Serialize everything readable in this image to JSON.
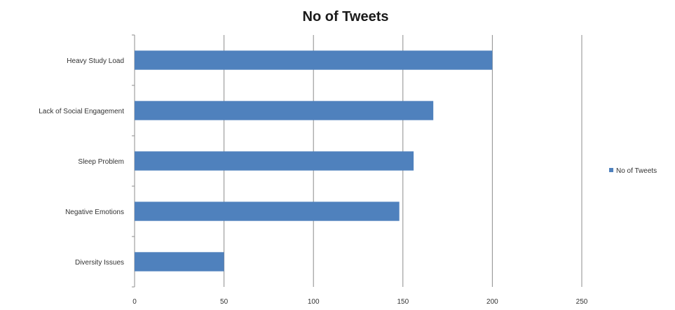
{
  "chart_data": {
    "type": "bar",
    "orientation": "horizontal",
    "title": "No of Tweets",
    "xlabel": "",
    "ylabel": "",
    "categories": [
      "Heavy Study Load",
      "Lack of Social Engagement",
      "Sleep Problem",
      "Negative Emotions",
      "Diversity Issues"
    ],
    "series": [
      {
        "name": "No of Tweets",
        "values": [
          200,
          167,
          156,
          148,
          50
        ]
      }
    ],
    "xlim": [
      0,
      250
    ],
    "x_ticks": [
      0,
      50,
      100,
      150,
      200,
      250
    ],
    "grid": "vertical",
    "legend_position": "right",
    "colors": {
      "bar": "#4f81bd",
      "grid": "#8c8c8c",
      "axis": "#8c8c8c"
    }
  }
}
